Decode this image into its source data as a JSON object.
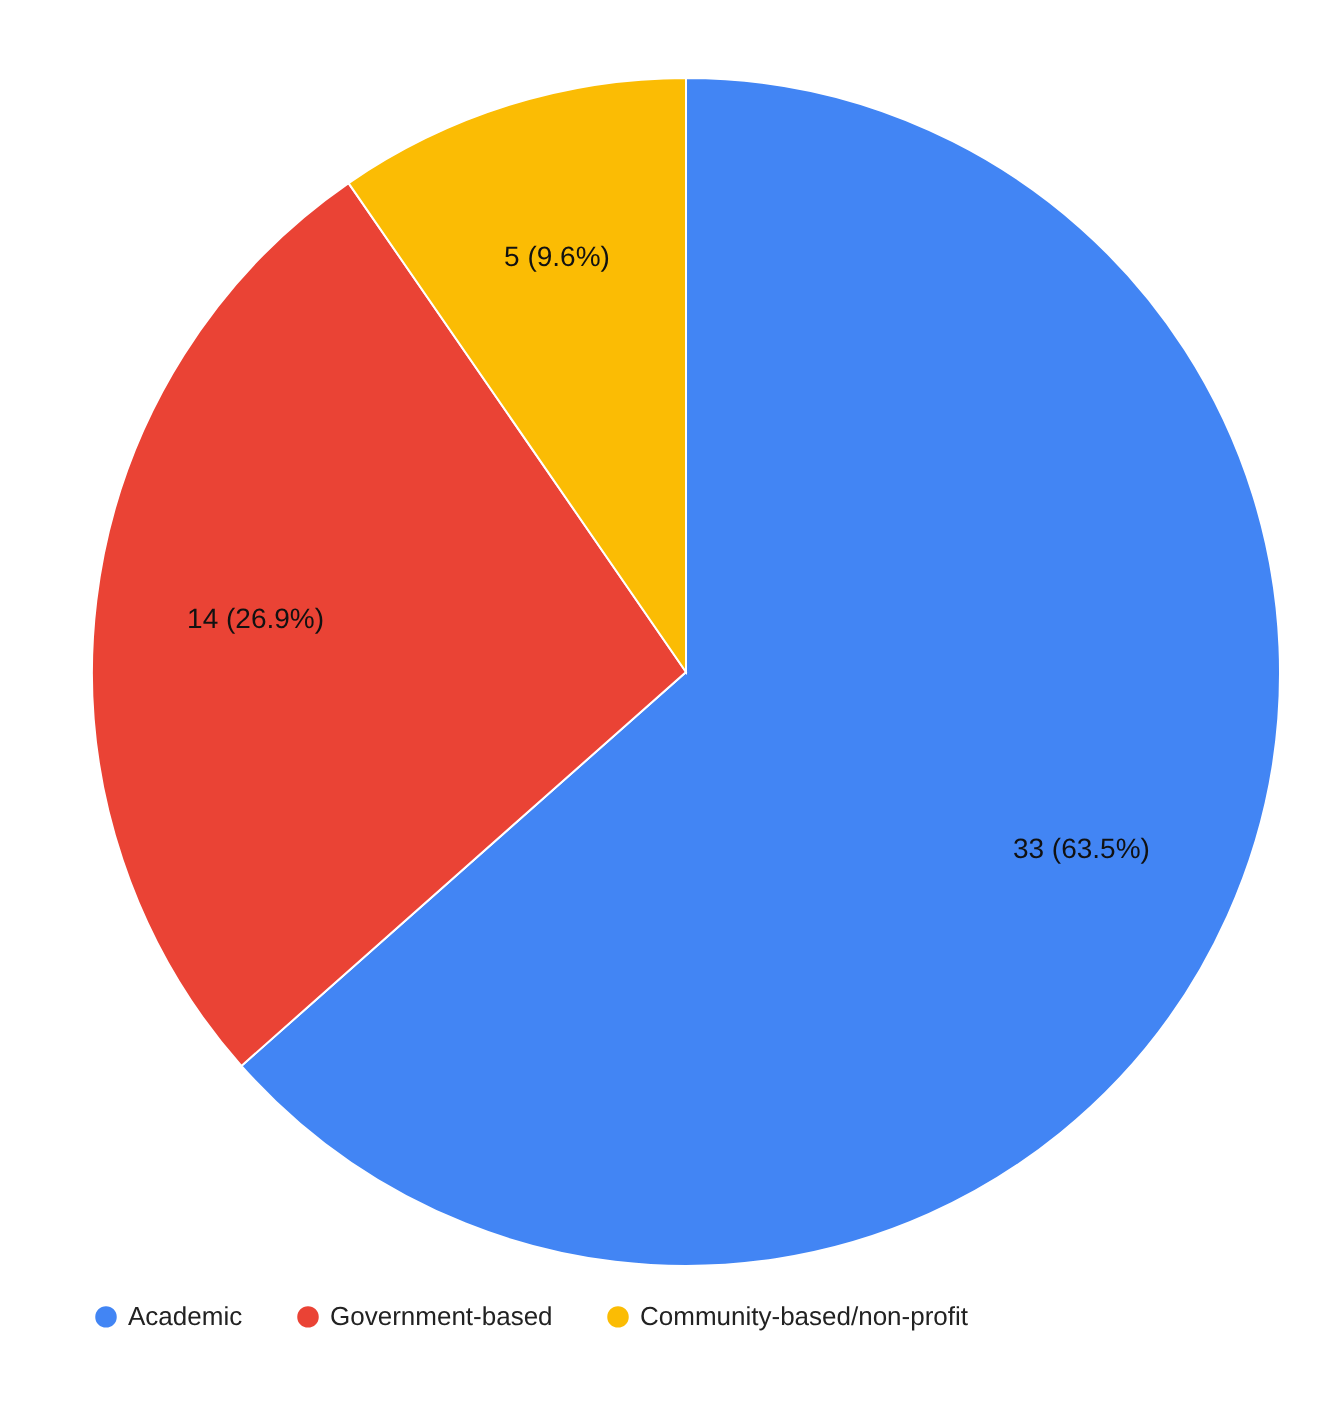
{
  "chart_data": {
    "type": "pie",
    "categories": [
      "Academic",
      "Government-based",
      "Community-based/non-profit"
    ],
    "values": [
      33,
      14,
      5
    ],
    "colors": [
      "#4285f4",
      "#ea4335",
      "#fbbc04"
    ],
    "value_labels": [
      "33 (63.5%)",
      "14 (26.9%)",
      "5 (9.6%)"
    ],
    "legend": "bottom"
  }
}
